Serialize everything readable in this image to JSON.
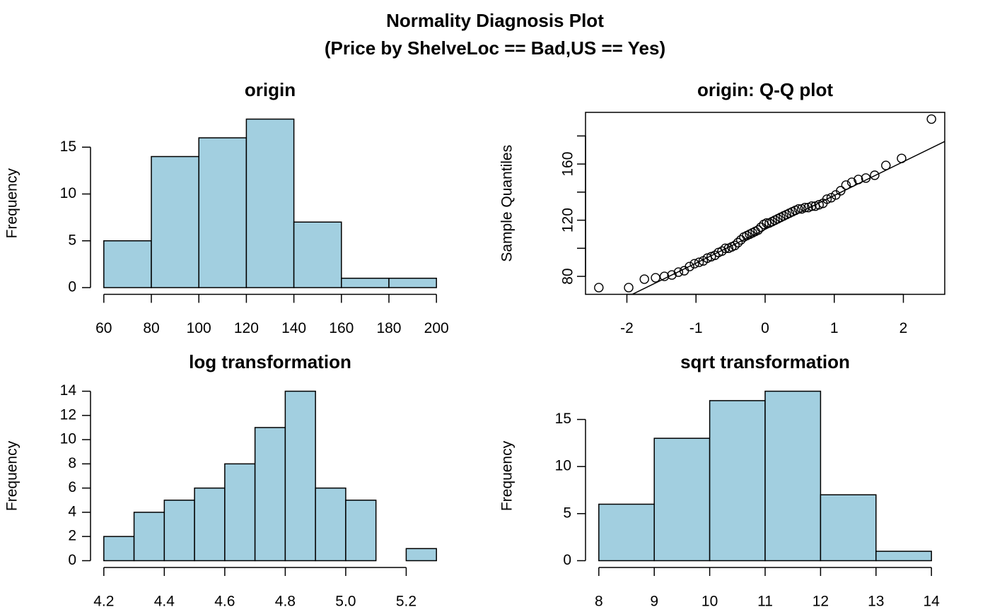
{
  "title": "Normality Diagnosis Plot",
  "subtitle": "(Price by ShelveLoc == Bad,US == Yes)",
  "chart_data": [
    {
      "type": "histogram",
      "title": "origin",
      "ylabel": "Frequency",
      "bins": [
        60,
        80,
        100,
        120,
        140,
        160,
        180,
        200
      ],
      "counts": [
        5,
        14,
        16,
        18,
        7,
        1,
        1
      ],
      "color": "#a2cfe0",
      "xlim": [
        60,
        200
      ],
      "ylim": [
        0,
        18
      ],
      "xticks": [
        60,
        80,
        100,
        120,
        140,
        160,
        180,
        200
      ],
      "yticks": [
        0,
        5,
        10,
        15
      ]
    },
    {
      "type": "qq",
      "title": "origin: Q-Q plot",
      "ylabel": "Sample Quantiles",
      "x": [
        -2.406,
        -1.974,
        -1.747,
        -1.585,
        -1.457,
        -1.349,
        -1.254,
        -1.17,
        -1.093,
        -1.022,
        -0.956,
        -0.895,
        -0.836,
        -0.78,
        -0.726,
        -0.674,
        -0.624,
        -0.576,
        -0.529,
        -0.483,
        -0.438,
        -0.394,
        -0.351,
        -0.308,
        -0.266,
        -0.224,
        -0.183,
        -0.142,
        -0.101,
        -0.061,
        -0.02,
        0.02,
        0.061,
        0.101,
        0.142,
        0.183,
        0.224,
        0.266,
        0.308,
        0.351,
        0.394,
        0.438,
        0.483,
        0.529,
        0.576,
        0.624,
        0.674,
        0.726,
        0.78,
        0.836,
        0.895,
        0.956,
        1.022,
        1.093,
        1.17,
        1.254,
        1.349,
        1.457,
        1.585,
        1.747,
        1.974,
        2.406
      ],
      "y": [
        72,
        72,
        78,
        79,
        80,
        81,
        83,
        84,
        87,
        89,
        90,
        91,
        93,
        94,
        95,
        97,
        98,
        100,
        100,
        101,
        102,
        104,
        106,
        108,
        109,
        110,
        111,
        112,
        113,
        115,
        117,
        118,
        118,
        119,
        120,
        121,
        122,
        123,
        124,
        125,
        126,
        127,
        128,
        128,
        129,
        129,
        130,
        130,
        131,
        132,
        135,
        136,
        138,
        141,
        145,
        147,
        149,
        150,
        152,
        159,
        164,
        192
      ],
      "line_intercept": 113.5,
      "line_slope": 24.09,
      "xlim": [
        -2.406,
        2.406
      ],
      "ylim": [
        72,
        192
      ],
      "xticks": [
        -2,
        -1,
        0,
        1,
        2
      ],
      "yticks": [
        80,
        100,
        120,
        140,
        160,
        180
      ],
      "ytick_label_step": 2
    },
    {
      "type": "histogram",
      "title": "log transformation",
      "ylabel": "Frequency",
      "bins": [
        4.2,
        4.3,
        4.4,
        4.5,
        4.6,
        4.7,
        4.8,
        4.9,
        5.0,
        5.1,
        5.2,
        5.3
      ],
      "counts": [
        2,
        4,
        5,
        6,
        8,
        11,
        14,
        6,
        5,
        0,
        1
      ],
      "color": "#a2cfe0",
      "xlim": [
        4.2,
        5.3
      ],
      "ylim": [
        0,
        14
      ],
      "xticks": [
        4.2,
        4.4,
        4.6,
        4.8,
        {
          "value": 5,
          "label": "5.0"
        },
        5.2
      ],
      "yticks": [
        0,
        2,
        4,
        6,
        8,
        10,
        12,
        14
      ]
    },
    {
      "type": "histogram",
      "title": "sqrt transformation",
      "ylabel": "Frequency",
      "bins": [
        8,
        9,
        10,
        11,
        12,
        13,
        14
      ],
      "counts": [
        6,
        13,
        17,
        18,
        7,
        1
      ],
      "color": "#a2cfe0",
      "xlim": [
        8,
        14
      ],
      "ylim": [
        0,
        18
      ],
      "xticks": [
        8,
        9,
        10,
        11,
        12,
        13,
        14
      ],
      "yticks": [
        0,
        5,
        10,
        15
      ]
    }
  ]
}
